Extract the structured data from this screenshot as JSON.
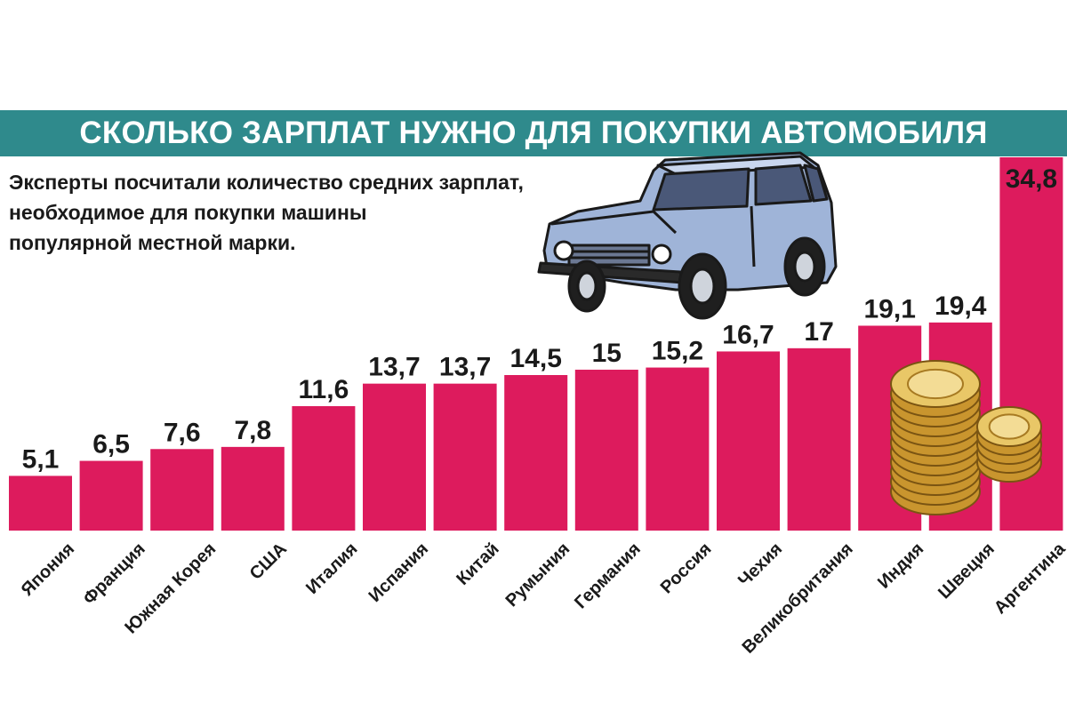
{
  "chart_data": {
    "type": "bar",
    "title": "СКОЛЬКО ЗАРПЛАТ НУЖНО ДЛЯ ПОКУПКИ АВТОМОБИЛЯ",
    "subtitle_lines": [
      "Эксперты посчитали количество средних зарплат,",
      "необходимое для покупки машины",
      "популярной местной марки."
    ],
    "categories": [
      "Япония",
      "Франция",
      "Южная Корея",
      "США",
      "Италия",
      "Испания",
      "Китай",
      "Румыния",
      "Германия",
      "Россия",
      "Чехия",
      "Великобритания",
      "Индия",
      "Швеция",
      "Аргентина"
    ],
    "values": [
      5.1,
      6.5,
      7.6,
      7.8,
      11.6,
      13.7,
      13.7,
      14.5,
      15,
      15.2,
      16.7,
      17,
      19.1,
      19.4,
      34.8
    ],
    "value_labels": [
      "5,1",
      "6,5",
      "7,6",
      "7,8",
      "11,6",
      "13,7",
      "13,7",
      "14,5",
      "15",
      "15,2",
      "16,7",
      "17",
      "19,1",
      "19,4",
      "34,8"
    ],
    "xlabel": "",
    "ylabel": "",
    "ylim": [
      0,
      34.8
    ],
    "grid": false,
    "legend": "none",
    "colors": {
      "bar": "#dd1b5d",
      "title_band": "#2f8a8c",
      "title_text": "#ffffff",
      "label_text": "#1a1a1a",
      "last_value_text": "#ffffff"
    },
    "illustrations": [
      "car-illustration",
      "coin-stack-illustration"
    ]
  }
}
